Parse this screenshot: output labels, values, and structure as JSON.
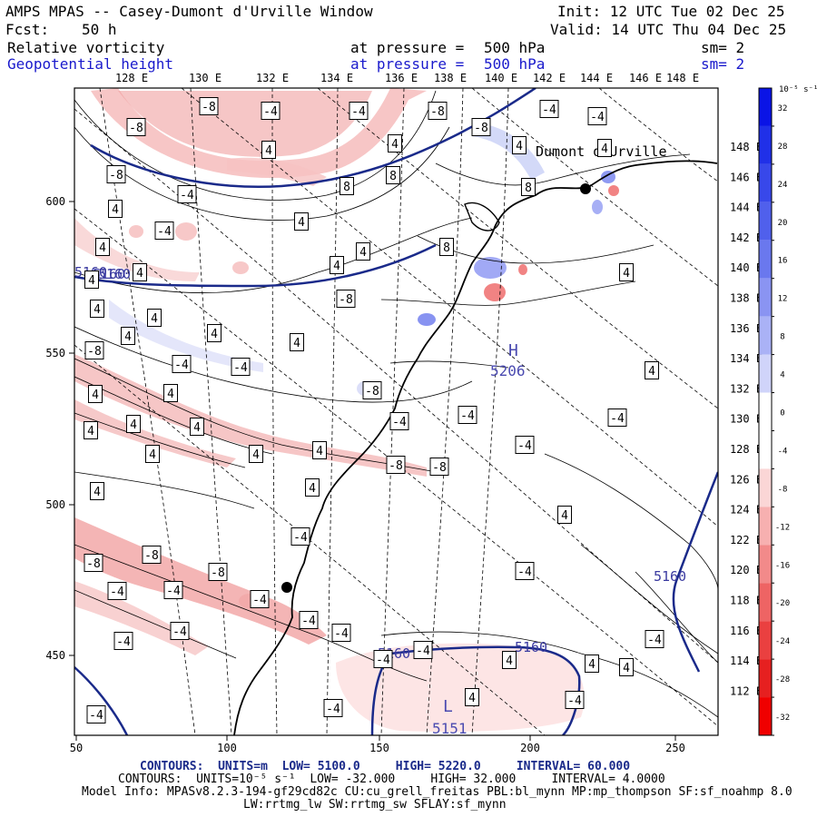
{
  "header": {
    "title": "AMPS MPAS -- Casey-Dumont d'Urville Window",
    "init": "Init: 12 UTC Tue 02 Dec 25",
    "forecast_label": "Fcst:",
    "forecast_hours": "50 h",
    "valid": "Valid: 14 UTC Thu 04 Dec 25"
  },
  "fields": [
    {
      "name": "Relative vorticity",
      "level_label": "at pressure =",
      "level": "500 hPa",
      "smooth": "sm= 2"
    },
    {
      "name": "Geopotential height",
      "level_label": "at pressure =",
      "level": "500 hPa",
      "smooth": "sm= 2"
    }
  ],
  "axes": {
    "top_lon_labels": [
      "128 E",
      "130 E",
      "132 E",
      "134 E",
      "136 E",
      "138 E",
      "140 E",
      "142 E",
      "144 E",
      "146 E",
      "148 E"
    ],
    "right_lon_labels": [
      "148 E",
      "146 E",
      "144 E",
      "142 E",
      "140 E",
      "138 E",
      "136 E",
      "134 E",
      "132 E",
      "130 E",
      "128 E",
      "126 E",
      "124 E",
      "122 E",
      "120 E",
      "118 E",
      "116 E",
      "114 E",
      "112 E"
    ],
    "x_ticks": [
      "50",
      "100",
      "150",
      "200",
      "250"
    ],
    "y_ticks": [
      "600",
      "550",
      "500",
      "450"
    ]
  },
  "colorbar": {
    "unit": "10⁻⁵ s⁻¹",
    "labels": [
      "32",
      "28",
      "24",
      "20",
      "16",
      "12",
      "8",
      "4",
      "0",
      "-4",
      "-8",
      "-12",
      "-16",
      "-20",
      "-24",
      "-28",
      "-32"
    ],
    "colors": [
      "#0a14e6",
      "#2030e8",
      "#3848ea",
      "#5060ec",
      "#6a78ee",
      "#8a94f2",
      "#aab2f6",
      "#d0d4fa",
      "#ffffff",
      "#ffffff",
      "#fbd6d6",
      "#f7b0b0",
      "#f28a8a",
      "#ee6464",
      "#ea4040",
      "#e62020",
      "#f00000"
    ]
  },
  "map_labels": {
    "station": "Dumont d'Urville",
    "high_letter": "H",
    "high_value": "5206",
    "low_letter": "L",
    "low_value": "5151",
    "height_labels": [
      "5160",
      "5160",
      "5160",
      "5160",
      "5160",
      "5160"
    ],
    "vort_labels": [
      "-8",
      "-8",
      "-4",
      "-4",
      "-8",
      "-8",
      "-4",
      "-4",
      "-8",
      "4",
      "4",
      "4",
      "4",
      "8",
      "8",
      "8",
      "4",
      "-4",
      "-4",
      "4",
      "4",
      "4",
      "4",
      "4",
      "4",
      "8",
      "4",
      "4",
      "4",
      "4",
      "4",
      "4",
      "-8",
      "-8",
      "-4",
      "-4",
      "4",
      "4",
      "4",
      "4",
      "-8",
      "-4",
      "-4",
      "-4",
      "4",
      "-4",
      "4",
      "4",
      "4",
      "4",
      "4",
      "4",
      "4",
      "-8",
      "-8",
      "-4",
      "-8",
      "-8",
      "-4",
      "-4",
      "-8",
      "-4",
      "-4",
      "-4",
      "-4",
      "-4",
      "-4",
      "-4",
      "4",
      "4",
      "4",
      "-4",
      "-4",
      "4",
      "-4",
      "-4",
      "-4"
    ]
  },
  "contour_info": [
    {
      "label": "CONTOURS:",
      "units": "UNITS=m",
      "low": "LOW=  5100.0",
      "high": "HIGH=  5220.0",
      "interval": "INTERVAL=   60.000"
    },
    {
      "label": "CONTOURS:",
      "units": "UNITS=10⁻⁵ s⁻¹",
      "low": "LOW= -32.000",
      "high": "HIGH=  32.000",
      "interval": "INTERVAL=   4.0000"
    }
  ],
  "model_info": [
    "Model Info: MPASv8.2.3-194-gf29cd82c CU:cu_grell_freitas PBL:bl_mynn MP:mp_thompson SF:sf_noahmp 8.0",
    "LW:rrtmg_lw SW:rrtmg_sw SFLAY:sf_mynn"
  ]
}
